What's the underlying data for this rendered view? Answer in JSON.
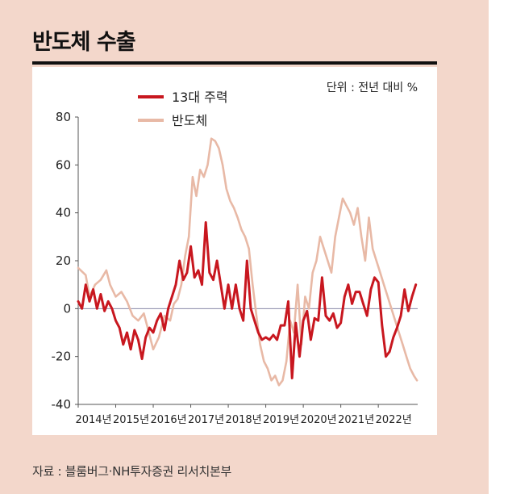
{
  "title": "반도체 수출",
  "source": "자료 : 블룸버그·NH투자증권 리서치본부",
  "chart_data": {
    "type": "line",
    "title": "반도체 수출",
    "unit_label": "단위 : 전년 대비 %",
    "xlabel": "",
    "ylabel": "",
    "ylim": [
      -40,
      80
    ],
    "yticks": [
      80,
      60,
      40,
      20,
      0,
      -20,
      -40
    ],
    "xlim": [
      2014,
      2023.05
    ],
    "xticks": [
      {
        "x": 2014.0,
        "label": "2014년"
      },
      {
        "x": 2015.0,
        "label": "2015년"
      },
      {
        "x": 2016.0,
        "label": "2016년"
      },
      {
        "x": 2017.0,
        "label": "2017년"
      },
      {
        "x": 2018.0,
        "label": "2018년"
      },
      {
        "x": 2019.0,
        "label": "2019년"
      },
      {
        "x": 2020.0,
        "label": "2020년"
      },
      {
        "x": 2021.0,
        "label": "2021년"
      },
      {
        "x": 2022.0,
        "label": "2022년"
      }
    ],
    "legend_position": "top-left",
    "series": [
      {
        "name": "반도체",
        "color": "#e8b9a6",
        "x": [
          2014.0,
          2014.2,
          2014.3,
          2014.45,
          2014.6,
          2014.75,
          2014.85,
          2015.0,
          2015.15,
          2015.3,
          2015.45,
          2015.6,
          2015.75,
          2015.85,
          2016.0,
          2016.15,
          2016.3,
          2016.45,
          2016.55,
          2016.65,
          2016.75,
          2016.85,
          2016.95,
          2017.05,
          2017.15,
          2017.25,
          2017.35,
          2017.45,
          2017.55,
          2017.65,
          2017.75,
          2017.85,
          2017.95,
          2018.05,
          2018.15,
          2018.25,
          2018.35,
          2018.45,
          2018.55,
          2018.65,
          2018.75,
          2018.85,
          2018.95,
          2019.05,
          2019.15,
          2019.25,
          2019.35,
          2019.45,
          2019.55,
          2019.65,
          2019.75,
          2019.85,
          2019.95,
          2020.05,
          2020.15,
          2020.25,
          2020.35,
          2020.45,
          2020.55,
          2020.65,
          2020.75,
          2020.85,
          2020.95,
          2021.05,
          2021.15,
          2021.25,
          2021.35,
          2021.45,
          2021.55,
          2021.65,
          2021.75,
          2021.85,
          2021.95,
          2022.05,
          2022.15,
          2022.25,
          2022.35,
          2022.45,
          2022.55,
          2022.65,
          2022.75,
          2022.85,
          2022.95,
          2023.03
        ],
        "values": [
          17,
          14,
          5,
          10,
          12,
          16,
          10,
          5,
          7,
          3,
          -3,
          -5,
          -2,
          -8,
          -17,
          -12,
          -3,
          -5,
          2,
          4,
          10,
          22,
          30,
          55,
          47,
          58,
          55,
          60,
          71,
          70,
          67,
          60,
          50,
          45,
          42,
          38,
          33,
          30,
          25,
          10,
          -3,
          -15,
          -22,
          -25,
          -30,
          -28,
          -32,
          -30,
          -22,
          -5,
          -10,
          10,
          -15,
          5,
          0,
          15,
          20,
          30,
          25,
          20,
          15,
          30,
          38,
          46,
          43,
          40,
          35,
          42,
          30,
          20,
          38,
          25,
          20,
          15,
          10,
          5,
          0,
          -5,
          -10,
          -15,
          -20,
          -25,
          -28,
          -30
        ]
      },
      {
        "name": "13대 주력",
        "color": "#c8171f",
        "x": [
          2014.0,
          2014.1,
          2014.2,
          2014.3,
          2014.4,
          2014.5,
          2014.6,
          2014.7,
          2014.8,
          2014.9,
          2015.0,
          2015.1,
          2015.2,
          2015.3,
          2015.4,
          2015.5,
          2015.6,
          2015.7,
          2015.8,
          2015.9,
          2016.0,
          2016.1,
          2016.2,
          2016.3,
          2016.4,
          2016.5,
          2016.6,
          2016.7,
          2016.8,
          2016.9,
          2017.0,
          2017.1,
          2017.2,
          2017.3,
          2017.4,
          2017.5,
          2017.6,
          2017.7,
          2017.8,
          2017.9,
          2018.0,
          2018.1,
          2018.2,
          2018.3,
          2018.4,
          2018.5,
          2018.6,
          2018.7,
          2018.8,
          2018.9,
          2019.0,
          2019.1,
          2019.2,
          2019.3,
          2019.4,
          2019.5,
          2019.6,
          2019.7,
          2019.8,
          2019.9,
          2020.0,
          2020.1,
          2020.2,
          2020.3,
          2020.4,
          2020.5,
          2020.6,
          2020.7,
          2020.8,
          2020.9,
          2021.0,
          2021.1,
          2021.2,
          2021.3,
          2021.4,
          2021.5,
          2021.6,
          2021.7,
          2021.8,
          2021.9,
          2022.0,
          2022.1,
          2022.2,
          2022.3,
          2022.4,
          2022.5,
          2022.6,
          2022.7,
          2022.8,
          2022.9,
          2023.0
        ],
        "values": [
          3,
          0,
          10,
          3,
          8,
          0,
          6,
          -1,
          3,
          0,
          -5,
          -8,
          -15,
          -10,
          -17,
          -9,
          -13,
          -21,
          -12,
          -8,
          -10,
          -5,
          -2,
          -9,
          0,
          5,
          10,
          20,
          12,
          15,
          26,
          13,
          16,
          10,
          36,
          15,
          12,
          20,
          10,
          0,
          10,
          0,
          10,
          0,
          -5,
          20,
          0,
          -5,
          -10,
          -13,
          -12,
          -13,
          -11,
          -13,
          -7,
          -7,
          3,
          -29,
          -6,
          -20,
          -5,
          -1,
          -13,
          -4,
          -5,
          13,
          -3,
          -5,
          -2,
          -8,
          -6,
          5,
          10,
          2,
          7,
          7,
          2,
          -3,
          8,
          13,
          11,
          -7,
          -20,
          -18,
          -12,
          -8,
          -3,
          8,
          -1,
          5,
          10
        ]
      }
    ]
  }
}
